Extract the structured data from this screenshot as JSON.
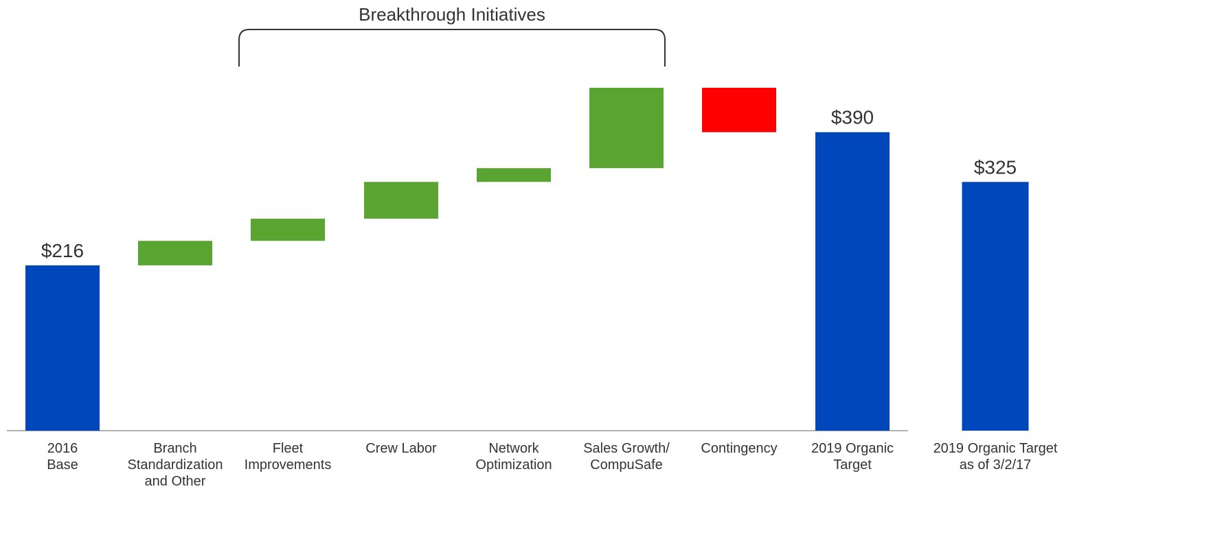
{
  "chart_data": {
    "type": "waterfall",
    "annotation": {
      "text": "Breakthrough Initiatives",
      "from": 1,
      "to": 5
    },
    "categories": [
      "2016\nBase",
      "Branch\nStandardization\nand Other",
      "Fleet\nImprovements",
      "Crew Labor",
      "Network\nOptimization",
      "Sales Growth/\nCompuSafe",
      "Contingency",
      "2019 Organic\nTarget",
      "2019 Organic Target\nas of 3/2/17"
    ],
    "values": [
      216,
      32,
      29,
      48,
      18,
      105,
      -58,
      390,
      325
    ],
    "value_labels": [
      "$216",
      null,
      null,
      null,
      null,
      null,
      null,
      "$390",
      "$325"
    ],
    "measures": [
      "absolute",
      "relative",
      "relative",
      "relative",
      "relative",
      "relative",
      "relative",
      "absolute",
      "absolute"
    ],
    "colors": {
      "total": "#0047bb",
      "increase": "#5aa532",
      "decrease": "#ff0000"
    }
  }
}
